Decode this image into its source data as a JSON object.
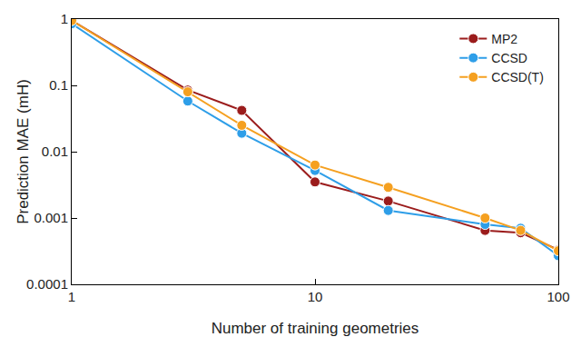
{
  "chart_data": {
    "type": "line",
    "x_label": "Number of training geometries",
    "y_label": "Prediction MAE (mH)",
    "log": true,
    "grid": false,
    "legend": "upper right",
    "marker": "circle",
    "line_style": "solid",
    "xlim": [
      1,
      100
    ],
    "xticks": [
      1,
      10,
      100
    ],
    "ylim": [
      0.0001,
      1
    ],
    "yticks": [
      0.0001,
      0.001,
      0.01,
      0.1,
      1
    ],
    "x": [
      1,
      3,
      5,
      10,
      20,
      50,
      70,
      100
    ],
    "series": [
      {
        "name": "MP2",
        "color": "#9b1c1c",
        "values": [
          0.95,
          0.085,
          0.042,
          0.0035,
          0.0018,
          0.00065,
          0.0006,
          0.00033
        ]
      },
      {
        "name": "CCSD",
        "color": "#2e9ee8",
        "values": [
          0.85,
          0.058,
          0.019,
          0.0052,
          0.0013,
          0.0008,
          0.0007,
          0.00027
        ]
      },
      {
        "name": "CCSD(T)",
        "color": "#f5a020",
        "values": [
          0.95,
          0.08,
          0.025,
          0.0063,
          0.0029,
          0.001,
          0.00065,
          0.00032
        ]
      }
    ]
  }
}
